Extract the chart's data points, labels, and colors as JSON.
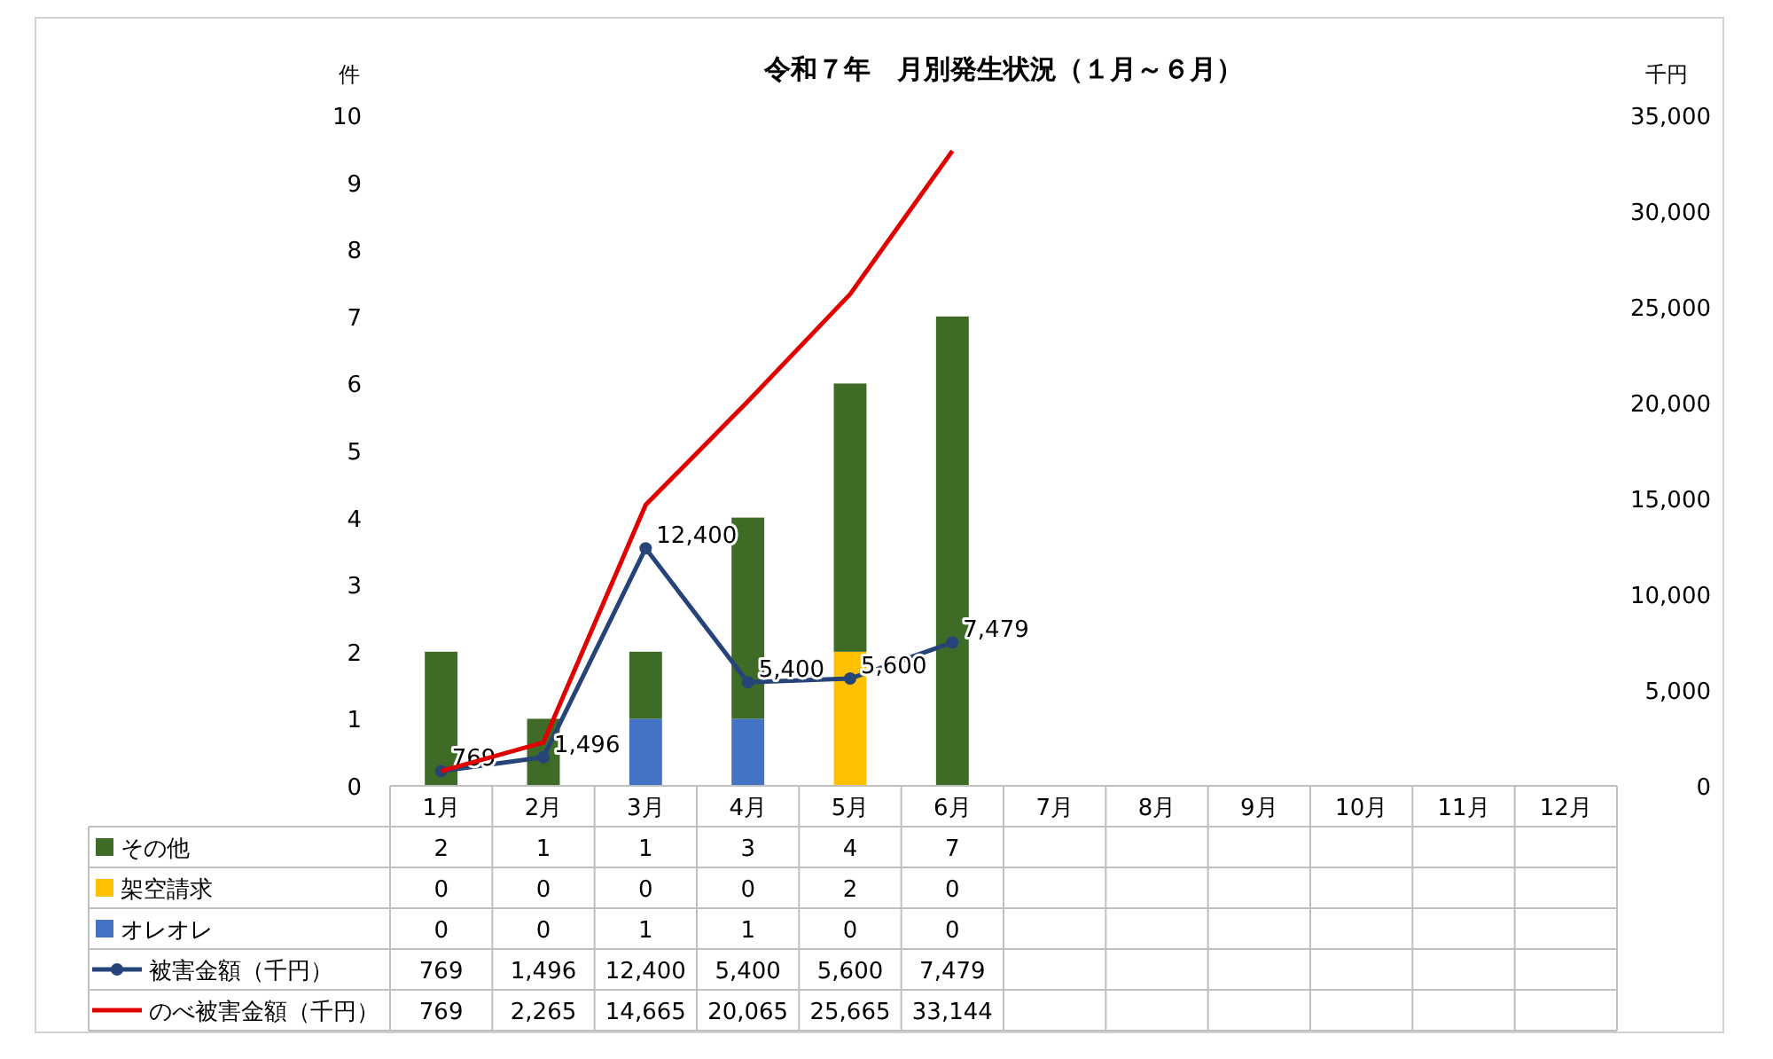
{
  "chart_data": {
    "type": "bar",
    "title": "令和７年　月別発生状況（１月～６月）",
    "ylabel": "件",
    "y2label": "千円",
    "categories": [
      "1月",
      "2月",
      "3月",
      "4月",
      "5月",
      "6月",
      "7月",
      "8月",
      "9月",
      "10月",
      "11月",
      "12月"
    ],
    "stacked": true,
    "legend": "bottom",
    "ylim": [
      0,
      10
    ],
    "yticks": [
      0,
      1,
      2,
      3,
      4,
      5,
      6,
      7,
      8,
      9,
      10
    ],
    "y2lim": [
      0,
      35000
    ],
    "y2ticks": [
      0,
      {
        "value": 5000,
        "label": "5,000"
      },
      {
        "value": 10000,
        "label": "10,000"
      },
      {
        "value": 15000,
        "label": "15,000"
      },
      {
        "value": 20000,
        "label": "20,000"
      },
      {
        "value": 25000,
        "label": "25,000"
      },
      {
        "value": 30000,
        "label": "30,000"
      },
      {
        "value": 35000,
        "label": "35,000"
      }
    ],
    "series": [
      {
        "name": "オレオレ",
        "color": "#4472c4",
        "values": [
          0,
          0,
          1,
          1,
          0,
          0,
          null,
          null,
          null,
          null,
          null,
          null
        ],
        "value_labels": [
          "0",
          "0",
          "1",
          "1",
          "0",
          "0",
          null,
          null,
          null,
          null,
          null,
          null
        ]
      },
      {
        "name": "架空請求",
        "color": "#ffc000",
        "values": [
          0,
          0,
          0,
          0,
          2,
          0,
          null,
          null,
          null,
          null,
          null,
          null
        ],
        "value_labels": [
          "0",
          "0",
          "0",
          "0",
          "2",
          "0",
          null,
          null,
          null,
          null,
          null,
          null
        ]
      },
      {
        "name": "その他",
        "color": "#3e6b26",
        "values": [
          2,
          1,
          1,
          3,
          4,
          7,
          null,
          null,
          null,
          null,
          null,
          null
        ],
        "value_labels": [
          "2",
          "1",
          "1",
          "3",
          "4",
          "7",
          null,
          null,
          null,
          null,
          null,
          null
        ]
      },
      {
        "name": "被害金額（千円）",
        "type": "line",
        "axis": "y2",
        "color": "#264478",
        "marker": "circle",
        "line_style": "solid",
        "data_labels": true,
        "values": [
          769,
          1496,
          12400,
          5400,
          5600,
          7479,
          null,
          null,
          null,
          null,
          null,
          null
        ],
        "value_labels": [
          "769",
          "1,496",
          "12,400",
          "5,400",
          "5,600",
          "7,479",
          null,
          null,
          null,
          null,
          null,
          null
        ]
      },
      {
        "name": "のべ被害金額（千円）",
        "type": "line",
        "axis": "y2",
        "color": "#e00000",
        "marker": "none",
        "line_style": "solid",
        "values": [
          769,
          2265,
          14665,
          20065,
          25665,
          33144,
          null,
          null,
          null,
          null,
          null,
          null
        ],
        "value_labels": [
          "769",
          "2,265",
          "14,665",
          "20,065",
          "25,665",
          "33,144",
          null,
          null,
          null,
          null,
          null,
          null
        ]
      }
    ]
  }
}
